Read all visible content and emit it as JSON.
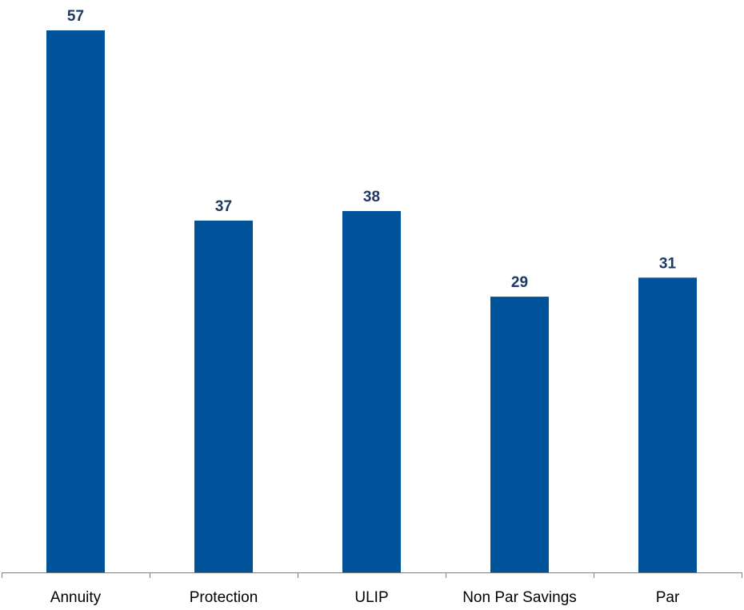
{
  "chart_data": {
    "type": "bar",
    "categories": [
      "Annuity",
      "Protection",
      "ULIP",
      "Non Par Savings",
      "Par"
    ],
    "values": [
      57,
      37,
      38,
      29,
      31
    ],
    "title": "",
    "xlabel": "",
    "ylabel": "",
    "ylim": [
      0,
      57
    ],
    "grid": false,
    "legend": "none",
    "data_labels": true,
    "colors": {
      "bar": "#00529b",
      "data_label": "#1f3864",
      "axis": "#7f7f7f"
    }
  }
}
